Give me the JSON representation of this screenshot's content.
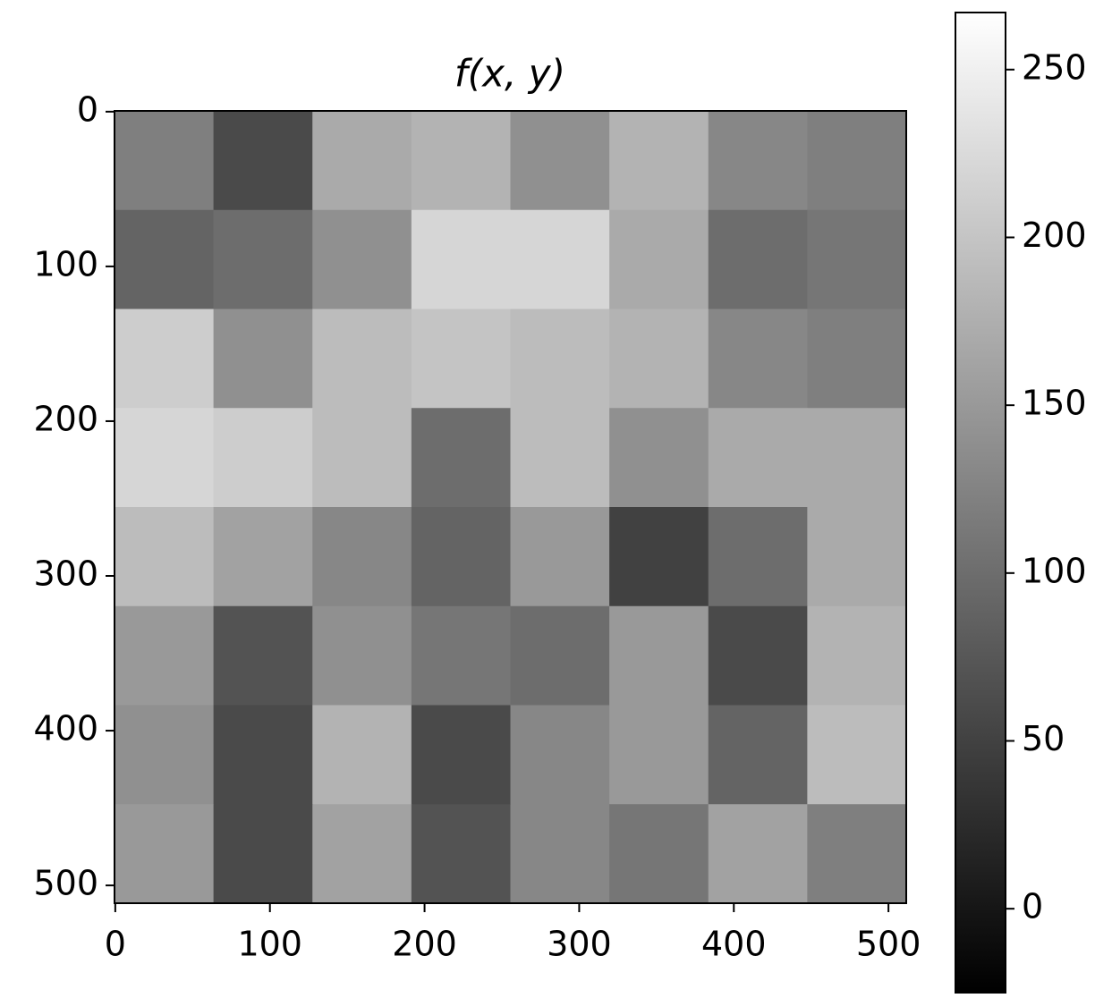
{
  "chart_data": {
    "type": "heatmap",
    "title": "f(x, y)",
    "xlim": [
      -0.5,
      511.5
    ],
    "ylim": [
      511.5,
      -0.5
    ],
    "xticks": [
      0,
      100,
      200,
      300,
      400,
      500
    ],
    "yticks": [
      0,
      100,
      200,
      300,
      400,
      500
    ],
    "colormap": [
      "#000000",
      "#ffffff"
    ],
    "clim": [
      -25,
      267
    ],
    "colorbar_ticks": [
      0,
      50,
      100,
      150,
      200,
      250
    ],
    "values": [
      [
        120,
        60,
        170,
        180,
        140,
        180,
        130,
        120
      ],
      [
        90,
        100,
        140,
        220,
        220,
        170,
        100,
        110
      ],
      [
        210,
        140,
        190,
        200,
        190,
        180,
        130,
        120
      ],
      [
        220,
        210,
        190,
        100,
        190,
        140,
        170,
        170
      ],
      [
        190,
        160,
        130,
        90,
        150,
        50,
        100,
        170
      ],
      [
        150,
        70,
        140,
        110,
        100,
        150,
        60,
        180
      ],
      [
        140,
        60,
        180,
        60,
        130,
        150,
        90,
        190
      ],
      [
        150,
        60,
        160,
        70,
        130,
        110,
        160,
        120
      ]
    ]
  }
}
